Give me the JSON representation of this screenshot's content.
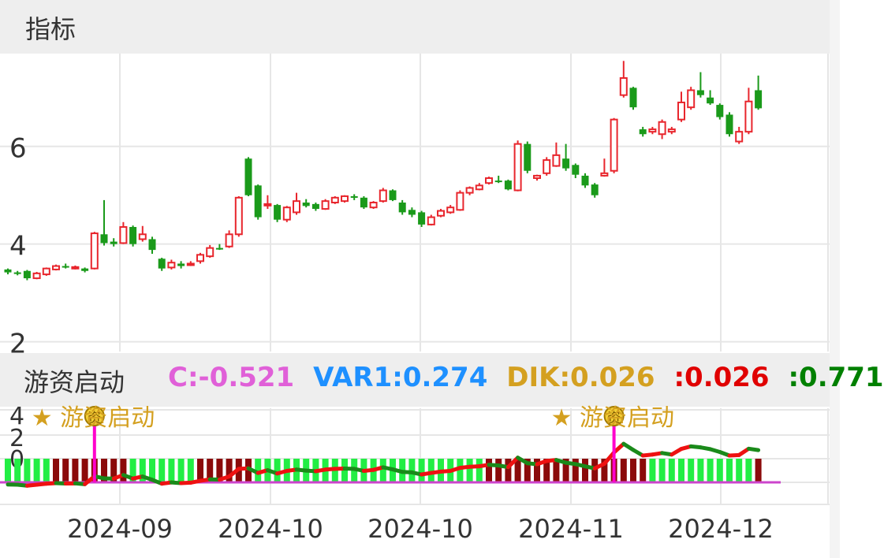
{
  "header": {
    "title": "指标"
  },
  "indicator": {
    "name": "游资启动",
    "items": [
      {
        "text": "C:-0.521",
        "color": "#e060d8"
      },
      {
        "text": "VAR1:0.274",
        "color": "#1e90ff"
      },
      {
        "text": "DIK:0.026",
        "color": "#d4a020"
      },
      {
        "text": ":0.026",
        "color": "#e00000"
      },
      {
        "text": ":0.771",
        "color": "#008000"
      }
    ],
    "signal_label": "★ 游资启动",
    "signal_badge": "资",
    "sub_ticks": [
      "4",
      "2",
      "0"
    ]
  },
  "colors": {
    "up": "#e8262d",
    "down": "#1a9a1a",
    "signal": "#d4a020"
  },
  "chart_data": [
    {
      "type": "candlestick",
      "x_ticks": [
        "2024-09",
        "2024-10",
        "2024-10",
        "2024-11",
        "2024-12"
      ],
      "y_ticks": [
        "2",
        "4",
        "6"
      ],
      "ylim": [
        1.8,
        7.9
      ],
      "grid": true,
      "candles": [
        [
          3.48,
          3.42,
          3.5,
          3.38
        ],
        [
          3.42,
          3.4,
          3.45,
          3.36
        ],
        [
          3.45,
          3.3,
          3.47,
          3.26
        ],
        [
          3.3,
          3.4,
          3.43,
          3.28
        ],
        [
          3.38,
          3.5,
          3.52,
          3.35
        ],
        [
          3.48,
          3.55,
          3.58,
          3.46
        ],
        [
          3.55,
          3.52,
          3.6,
          3.5
        ],
        [
          3.52,
          3.53,
          3.56,
          3.48
        ],
        [
          3.5,
          3.45,
          3.52,
          3.42
        ],
        [
          3.5,
          4.22,
          4.25,
          3.48
        ],
        [
          4.2,
          4.02,
          4.9,
          3.97
        ],
        [
          4.05,
          4.0,
          4.12,
          3.95
        ],
        [
          4.02,
          4.35,
          4.45,
          4.0
        ],
        [
          4.35,
          4.0,
          4.38,
          3.95
        ],
        [
          4.1,
          4.2,
          4.37,
          4.05
        ],
        [
          4.1,
          3.88,
          4.15,
          3.8
        ],
        [
          3.7,
          3.5,
          3.72,
          3.45
        ],
        [
          3.52,
          3.62,
          3.68,
          3.48
        ],
        [
          3.6,
          3.55,
          3.65,
          3.5
        ],
        [
          3.58,
          3.6,
          3.65,
          3.55
        ],
        [
          3.65,
          3.78,
          3.82,
          3.6
        ],
        [
          3.75,
          3.92,
          3.98,
          3.72
        ],
        [
          3.92,
          3.9,
          4.0,
          3.88
        ],
        [
          3.95,
          4.2,
          4.28,
          3.92
        ],
        [
          4.2,
          4.95,
          4.98,
          4.15
        ],
        [
          5.75,
          5.0,
          5.78,
          4.98
        ],
        [
          5.2,
          4.55,
          5.22,
          4.5
        ],
        [
          4.8,
          4.82,
          5.0,
          4.72
        ],
        [
          4.8,
          4.5,
          4.82,
          4.45
        ],
        [
          4.5,
          4.75,
          4.78,
          4.45
        ],
        [
          4.65,
          4.88,
          5.05,
          4.6
        ],
        [
          4.85,
          4.78,
          4.92,
          4.75
        ],
        [
          4.82,
          4.72,
          4.85,
          4.68
        ],
        [
          4.72,
          4.88,
          4.92,
          4.7
        ],
        [
          4.85,
          4.95,
          4.98,
          4.82
        ],
        [
          4.88,
          4.98,
          5.0,
          4.85
        ],
        [
          4.98,
          4.95,
          5.02,
          4.9
        ],
        [
          4.95,
          4.75,
          4.98,
          4.72
        ],
        [
          4.75,
          4.85,
          4.88,
          4.72
        ],
        [
          4.88,
          5.1,
          5.15,
          4.85
        ],
        [
          5.1,
          4.9,
          5.12,
          4.88
        ],
        [
          4.85,
          4.65,
          4.9,
          4.6
        ],
        [
          4.7,
          4.6,
          4.75,
          4.55
        ],
        [
          4.65,
          4.4,
          4.68,
          4.35
        ],
        [
          4.4,
          4.55,
          4.6,
          4.38
        ],
        [
          4.58,
          4.68,
          4.72,
          4.55
        ],
        [
          4.65,
          4.75,
          4.8,
          4.62
        ],
        [
          4.7,
          5.05,
          5.1,
          4.68
        ],
        [
          5.05,
          5.15,
          5.18,
          5.0
        ],
        [
          5.12,
          5.2,
          5.25,
          5.1
        ],
        [
          5.25,
          5.35,
          5.38,
          5.22
        ],
        [
          5.3,
          5.28,
          5.4,
          5.25
        ],
        [
          5.3,
          5.12,
          5.32,
          5.1
        ],
        [
          5.1,
          6.05,
          6.12,
          5.08
        ],
        [
          6.05,
          5.5,
          6.1,
          5.45
        ],
        [
          5.35,
          5.4,
          5.42,
          5.3
        ],
        [
          5.45,
          5.72,
          5.78,
          5.4
        ],
        [
          5.6,
          5.82,
          6.08,
          5.58
        ],
        [
          5.75,
          5.55,
          6.05,
          5.5
        ],
        [
          5.62,
          5.42,
          5.65,
          5.35
        ],
        [
          5.4,
          5.2,
          5.45,
          5.15
        ],
        [
          5.22,
          5.0,
          5.25,
          4.95
        ],
        [
          5.4,
          5.45,
          5.75,
          5.38
        ],
        [
          5.5,
          6.55,
          6.58,
          5.45
        ],
        [
          7.05,
          7.4,
          7.75,
          7.0
        ],
        [
          7.2,
          6.8,
          7.22,
          6.75
        ],
        [
          6.35,
          6.25,
          6.4,
          6.2
        ],
        [
          6.3,
          6.35,
          6.4,
          6.25
        ],
        [
          6.25,
          6.5,
          6.55,
          6.15
        ],
        [
          6.3,
          6.35,
          6.4,
          6.25
        ],
        [
          6.55,
          6.9,
          7.12,
          6.5
        ],
        [
          6.8,
          7.15,
          7.22,
          6.75
        ],
        [
          7.15,
          7.05,
          7.52,
          7.0
        ],
        [
          7.0,
          6.88,
          7.15,
          6.85
        ],
        [
          6.85,
          6.6,
          6.88,
          6.55
        ],
        [
          6.65,
          6.25,
          6.7,
          6.2
        ],
        [
          6.1,
          6.3,
          6.4,
          6.05
        ],
        [
          6.3,
          6.92,
          7.2,
          6.25
        ],
        [
          7.15,
          6.78,
          7.45,
          6.75
        ]
      ]
    },
    {
      "type": "indicator",
      "name": "游资启动",
      "series": [
        {
          "name": "C",
          "value": -0.521
        },
        {
          "name": "VAR1",
          "value": 0.274
        },
        {
          "name": "DIK",
          "value": 0.026
        }
      ],
      "signals": [
        9,
        63
      ]
    }
  ]
}
